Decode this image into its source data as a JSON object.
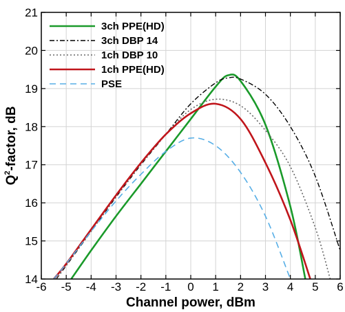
{
  "chart_data": {
    "type": "line",
    "xlabel": "Channel power, dBm",
    "ylabel_main": "Q",
    "ylabel_sup": "2",
    "ylabel_rest": "-factor, dB",
    "xlim": [
      -6,
      6
    ],
    "ylim": [
      14,
      21
    ],
    "xticks": [
      -6,
      -5,
      -4,
      -3,
      -2,
      -1,
      0,
      1,
      2,
      3,
      4,
      5,
      6
    ],
    "yticks": [
      14,
      15,
      16,
      17,
      18,
      19,
      20,
      21
    ],
    "grid": true,
    "legend_position": "top-left",
    "series": [
      {
        "name": "3ch PPE(HD)",
        "color": "#1a9a2a",
        "dash": "solid",
        "x": [
          -4.8,
          -4,
          -3,
          -2,
          -1,
          0,
          1,
          1.5,
          2,
          3,
          4,
          4.6
        ],
        "y": [
          14.0,
          14.75,
          15.65,
          16.5,
          17.35,
          18.2,
          19.05,
          19.35,
          19.2,
          18.05,
          15.9,
          14.0
        ]
      },
      {
        "name": "3ch DBP 14",
        "color": "#000000",
        "dash": "dashdot",
        "x": [
          -5.4,
          -5,
          -4,
          -3,
          -2,
          -1,
          0,
          1,
          1.5,
          2,
          3,
          4,
          5,
          6
        ],
        "y": [
          14.0,
          14.35,
          15.25,
          16.15,
          17.0,
          17.8,
          18.6,
          19.15,
          19.28,
          19.25,
          18.85,
          18.0,
          16.7,
          14.75
        ]
      },
      {
        "name": "1ch DBP 10",
        "color": "#666666",
        "dash": "dotted",
        "x": [
          -5.4,
          -5,
          -4,
          -3,
          -2,
          -1,
          0,
          1,
          2,
          3,
          4,
          5,
          5.6
        ],
        "y": [
          14.0,
          14.35,
          15.25,
          16.15,
          17.0,
          17.8,
          18.45,
          18.72,
          18.55,
          17.9,
          16.95,
          15.35,
          14.0
        ]
      },
      {
        "name": "1ch PPE(HD)",
        "color": "#c0151b",
        "dash": "solid",
        "x": [
          -5.5,
          -5,
          -4,
          -3,
          -2,
          -1,
          0,
          1,
          2,
          3,
          4,
          4.8
        ],
        "y": [
          14.0,
          14.4,
          15.3,
          16.2,
          17.05,
          17.8,
          18.35,
          18.6,
          18.2,
          17.05,
          15.55,
          14.0
        ]
      },
      {
        "name": "PSE",
        "color": "#56aee6",
        "dash": "dashed",
        "x": [
          -5.5,
          -5,
          -4,
          -3,
          -2,
          -1,
          0,
          1,
          2,
          3,
          4
        ],
        "y": [
          14.0,
          14.4,
          15.25,
          16.05,
          16.75,
          17.35,
          17.7,
          17.5,
          16.8,
          15.65,
          14.0
        ]
      }
    ]
  }
}
